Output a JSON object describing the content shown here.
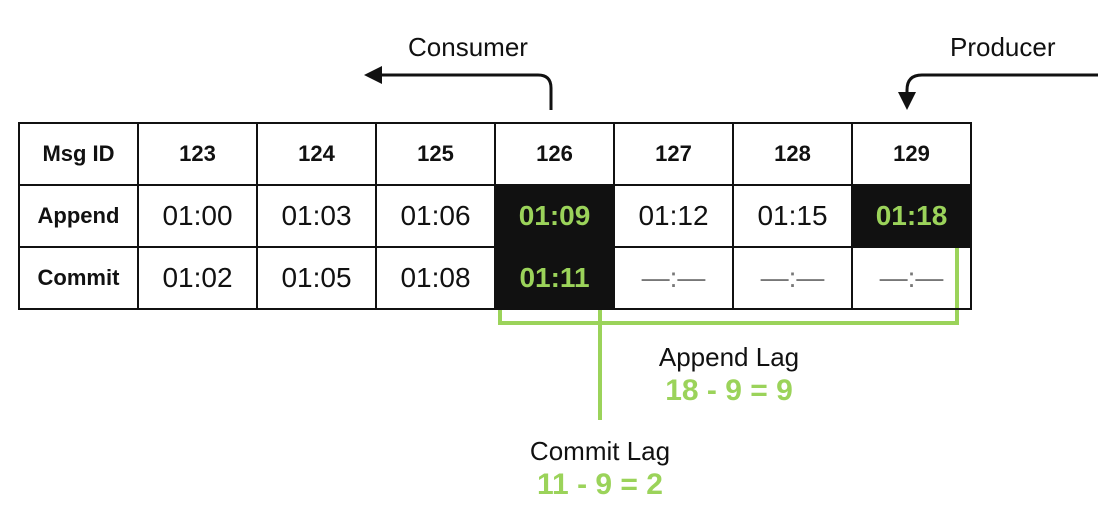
{
  "labels": {
    "consumer": "Consumer",
    "producer": "Producer",
    "append_lag_title": "Append Lag",
    "append_lag_formula": "18 - 9 = 9",
    "commit_lag_title": "Commit Lag",
    "commit_lag_formula": "11 - 9 = 2"
  },
  "table": {
    "header": [
      "Msg ID",
      "123",
      "124",
      "125",
      "126",
      "127",
      "128",
      "129"
    ],
    "append": [
      "Append",
      "01:00",
      "01:03",
      "01:06",
      "01:09",
      "01:12",
      "01:15",
      "01:18"
    ],
    "commit": [
      "Commit",
      "01:02",
      "01:05",
      "01:08",
      "01:11",
      "—:—",
      "—:—",
      "—:—"
    ]
  },
  "colors": {
    "highlight_bg": "#111111",
    "highlight_text": "#9bd35a",
    "bracket": "#9bd35a"
  }
}
